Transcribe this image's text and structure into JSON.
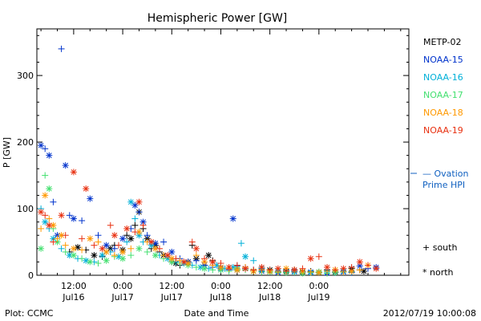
{
  "chart_data": {
    "type": "scatter",
    "title": "Hemispheric Power [GW]",
    "ylabel": "P [GW]",
    "xlabel": "Date and Time",
    "ylim": [
      0,
      370
    ],
    "yticks": [
      0,
      100,
      200,
      300
    ],
    "xrange_hours": [
      -9,
      82
    ],
    "xticks": [
      {
        "h": 0,
        "top": "12:00",
        "bottom": "Jul16"
      },
      {
        "h": 12,
        "top": "0:00",
        "bottom": "Jul17"
      },
      {
        "h": 24,
        "top": "12:00",
        "bottom": "Jul17"
      },
      {
        "h": 36,
        "top": "0:00",
        "bottom": "Jul18"
      },
      {
        "h": 48,
        "top": "12:00",
        "bottom": "Jul18"
      },
      {
        "h": 60,
        "top": "0:00",
        "bottom": "Jul19"
      }
    ],
    "series": [
      {
        "name": "METP-02",
        "color": "#000000",
        "marker": "mixed",
        "points": [
          [
            -1,
            35
          ],
          [
            1,
            42
          ],
          [
            3,
            38
          ],
          [
            5,
            30
          ],
          [
            7,
            28
          ],
          [
            9,
            40
          ],
          [
            10,
            45
          ],
          [
            12,
            38
          ],
          [
            13,
            60
          ],
          [
            14,
            55
          ],
          [
            15,
            75
          ],
          [
            16,
            95
          ],
          [
            17,
            70
          ],
          [
            18,
            55
          ],
          [
            19,
            40
          ],
          [
            20,
            45
          ],
          [
            21,
            35
          ],
          [
            22,
            30
          ],
          [
            24,
            20
          ],
          [
            25,
            18
          ],
          [
            26,
            15
          ],
          [
            28,
            20
          ],
          [
            29,
            45
          ],
          [
            30,
            25
          ],
          [
            32,
            15
          ],
          [
            33,
            30
          ],
          [
            34,
            22
          ],
          [
            36,
            12
          ],
          [
            38,
            10
          ],
          [
            40,
            8
          ],
          [
            42,
            12
          ],
          [
            44,
            6
          ],
          [
            46,
            10
          ],
          [
            48,
            8
          ],
          [
            50,
            5
          ],
          [
            52,
            6
          ],
          [
            54,
            8
          ],
          [
            56,
            5
          ],
          [
            58,
            6
          ],
          [
            60,
            4
          ],
          [
            62,
            8
          ],
          [
            64,
            5
          ],
          [
            66,
            6
          ],
          [
            68,
            10
          ],
          [
            70,
            8
          ],
          [
            71,
            6
          ]
        ]
      },
      {
        "name": "NOAA-15",
        "color": "#0033cc",
        "marker": "mixed",
        "points": [
          [
            -8,
            195
          ],
          [
            -7,
            190
          ],
          [
            -6,
            180
          ],
          [
            -5,
            110
          ],
          [
            -4,
            60
          ],
          [
            -3,
            340
          ],
          [
            -2,
            165
          ],
          [
            -1,
            90
          ],
          [
            0,
            85
          ],
          [
            2,
            82
          ],
          [
            4,
            115
          ],
          [
            6,
            60
          ],
          [
            8,
            45
          ],
          [
            10,
            40
          ],
          [
            12,
            55
          ],
          [
            14,
            70
          ],
          [
            15,
            105
          ],
          [
            16,
            95
          ],
          [
            17,
            80
          ],
          [
            18,
            60
          ],
          [
            20,
            48
          ],
          [
            22,
            50
          ],
          [
            24,
            35
          ],
          [
            26,
            25
          ],
          [
            28,
            20
          ],
          [
            30,
            22
          ],
          [
            32,
            15
          ],
          [
            34,
            12
          ],
          [
            36,
            10
          ],
          [
            38,
            8
          ],
          [
            39,
            85
          ],
          [
            40,
            14
          ],
          [
            42,
            10
          ],
          [
            44,
            8
          ],
          [
            46,
            6
          ],
          [
            48,
            5
          ],
          [
            50,
            4
          ],
          [
            52,
            8
          ],
          [
            54,
            6
          ],
          [
            56,
            5
          ],
          [
            58,
            5
          ],
          [
            60,
            4
          ],
          [
            62,
            3
          ],
          [
            64,
            4
          ],
          [
            66,
            5
          ],
          [
            68,
            4
          ],
          [
            70,
            14
          ],
          [
            72,
            10
          ],
          [
            74,
            12
          ]
        ]
      },
      {
        "name": "NOAA-16",
        "color": "#00b0d8",
        "marker": "mixed",
        "points": [
          [
            -8,
            100
          ],
          [
            -7,
            80
          ],
          [
            -6,
            70
          ],
          [
            -5,
            55
          ],
          [
            -3,
            40
          ],
          [
            -1,
            30
          ],
          [
            1,
            25
          ],
          [
            3,
            22
          ],
          [
            5,
            20
          ],
          [
            7,
            30
          ],
          [
            9,
            35
          ],
          [
            11,
            28
          ],
          [
            13,
            50
          ],
          [
            14,
            110
          ],
          [
            15,
            85
          ],
          [
            16,
            60
          ],
          [
            17,
            50
          ],
          [
            19,
            45
          ],
          [
            21,
            30
          ],
          [
            23,
            25
          ],
          [
            25,
            20
          ],
          [
            27,
            18
          ],
          [
            29,
            15
          ],
          [
            31,
            12
          ],
          [
            33,
            10
          ],
          [
            35,
            15
          ],
          [
            37,
            10
          ],
          [
            39,
            12
          ],
          [
            41,
            48
          ],
          [
            42,
            28
          ],
          [
            44,
            22
          ],
          [
            46,
            10
          ],
          [
            48,
            8
          ],
          [
            50,
            6
          ],
          [
            52,
            5
          ],
          [
            54,
            5
          ],
          [
            56,
            6
          ],
          [
            58,
            4
          ],
          [
            60,
            5
          ],
          [
            62,
            5
          ],
          [
            64,
            4
          ],
          [
            66,
            6
          ],
          [
            68,
            5
          ]
        ]
      },
      {
        "name": "NOAA-17",
        "color": "#44e070",
        "marker": "mixed",
        "points": [
          [
            -8,
            40
          ],
          [
            -7,
            150
          ],
          [
            -6,
            130
          ],
          [
            -5,
            70
          ],
          [
            -4,
            50
          ],
          [
            -2,
            35
          ],
          [
            0,
            30
          ],
          [
            2,
            25
          ],
          [
            4,
            20
          ],
          [
            6,
            18
          ],
          [
            8,
            22
          ],
          [
            10,
            28
          ],
          [
            12,
            25
          ],
          [
            14,
            30
          ],
          [
            16,
            40
          ],
          [
            18,
            35
          ],
          [
            20,
            30
          ],
          [
            22,
            25
          ],
          [
            24,
            20
          ],
          [
            26,
            18
          ],
          [
            28,
            15
          ],
          [
            30,
            12
          ],
          [
            32,
            10
          ],
          [
            34,
            8
          ],
          [
            36,
            8
          ],
          [
            38,
            6
          ],
          [
            40,
            10
          ],
          [
            42,
            8
          ],
          [
            44,
            6
          ],
          [
            46,
            5
          ],
          [
            48,
            5
          ],
          [
            50,
            4
          ],
          [
            52,
            4
          ],
          [
            54,
            5
          ],
          [
            56,
            3
          ],
          [
            58,
            4
          ],
          [
            60,
            5
          ],
          [
            62,
            3
          ],
          [
            64,
            4
          ],
          [
            66,
            5
          ]
        ]
      },
      {
        "name": "NOAA-18",
        "color": "#ff9900",
        "marker": "mixed",
        "points": [
          [
            -8,
            70
          ],
          [
            -7,
            120
          ],
          [
            -6,
            85
          ],
          [
            -5,
            75
          ],
          [
            -4,
            55
          ],
          [
            -3,
            60
          ],
          [
            -2,
            45
          ],
          [
            0,
            40
          ],
          [
            2,
            38
          ],
          [
            4,
            55
          ],
          [
            6,
            50
          ],
          [
            8,
            35
          ],
          [
            10,
            30
          ],
          [
            12,
            35
          ],
          [
            14,
            40
          ],
          [
            16,
            65
          ],
          [
            18,
            50
          ],
          [
            20,
            40
          ],
          [
            22,
            30
          ],
          [
            24,
            25
          ],
          [
            26,
            22
          ],
          [
            28,
            18
          ],
          [
            30,
            30
          ],
          [
            32,
            20
          ],
          [
            34,
            15
          ],
          [
            36,
            12
          ],
          [
            38,
            10
          ],
          [
            40,
            8
          ],
          [
            42,
            12
          ],
          [
            44,
            6
          ],
          [
            46,
            8
          ],
          [
            48,
            6
          ],
          [
            50,
            5
          ],
          [
            52,
            10
          ],
          [
            54,
            8
          ],
          [
            56,
            6
          ],
          [
            58,
            5
          ],
          [
            60,
            4
          ],
          [
            62,
            6
          ],
          [
            64,
            8
          ],
          [
            66,
            5
          ],
          [
            68,
            6
          ],
          [
            70,
            8
          ],
          [
            72,
            15
          ]
        ]
      },
      {
        "name": "NOAA-19",
        "color": "#e83010",
        "marker": "mixed",
        "points": [
          [
            -8,
            95
          ],
          [
            -7,
            90
          ],
          [
            -6,
            75
          ],
          [
            -5,
            50
          ],
          [
            -3,
            90
          ],
          [
            -2,
            60
          ],
          [
            0,
            155
          ],
          [
            2,
            55
          ],
          [
            3,
            130
          ],
          [
            5,
            45
          ],
          [
            7,
            40
          ],
          [
            9,
            75
          ],
          [
            10,
            60
          ],
          [
            11,
            45
          ],
          [
            13,
            70
          ],
          [
            15,
            65
          ],
          [
            16,
            110
          ],
          [
            17,
            75
          ],
          [
            19,
            50
          ],
          [
            21,
            40
          ],
          [
            23,
            30
          ],
          [
            25,
            25
          ],
          [
            27,
            20
          ],
          [
            29,
            50
          ],
          [
            30,
            40
          ],
          [
            32,
            25
          ],
          [
            34,
            20
          ],
          [
            36,
            18
          ],
          [
            38,
            12
          ],
          [
            40,
            15
          ],
          [
            42,
            10
          ],
          [
            44,
            8
          ],
          [
            46,
            12
          ],
          [
            48,
            8
          ],
          [
            50,
            10
          ],
          [
            52,
            6
          ],
          [
            54,
            8
          ],
          [
            56,
            10
          ],
          [
            58,
            25
          ],
          [
            60,
            28
          ],
          [
            62,
            12
          ],
          [
            64,
            8
          ],
          [
            66,
            10
          ],
          [
            68,
            12
          ],
          [
            70,
            20
          ],
          [
            72,
            15
          ],
          [
            74,
            10
          ]
        ]
      }
    ],
    "legend": {
      "placement": "right",
      "items": [
        {
          "name": "METP-02",
          "color": "#000000"
        },
        {
          "name": "NOAA-15",
          "color": "#0033cc"
        },
        {
          "name": "NOAA-16",
          "color": "#00b0d8"
        },
        {
          "name": "NOAA-17",
          "color": "#44e070"
        },
        {
          "name": "NOAA-18",
          "color": "#ff9900"
        },
        {
          "name": "NOAA-19",
          "color": "#e83010"
        }
      ],
      "ovation_line1": "— Ovation",
      "ovation_line2": "Prime HPI",
      "ovation_color": "#1060c0",
      "south_label": "+ south",
      "north_label": "* north"
    }
  },
  "footer": {
    "left": "Plot: CCMC",
    "right": "2012/07/19 10:00:08"
  }
}
